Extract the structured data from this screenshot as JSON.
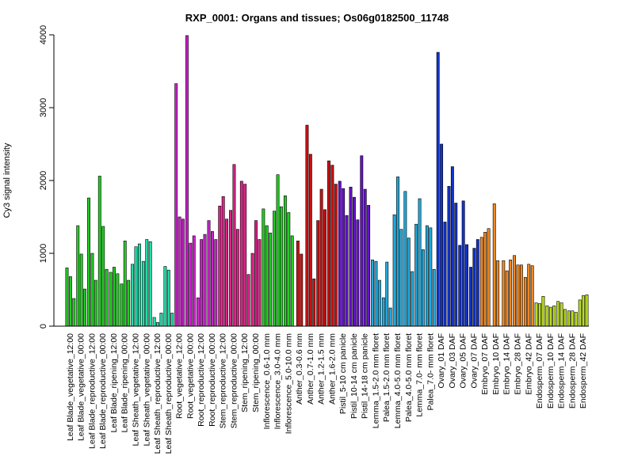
{
  "chart_data": {
    "type": "bar",
    "title": "RXP_0001: Organs and tissues; Os06g0182500_11748",
    "xlabel": "",
    "ylabel": "Cy3 signal intensity",
    "ylim": [
      0,
      4000
    ],
    "yticks": [
      0,
      1000,
      2000,
      3000,
      4000
    ],
    "x_tick_labels": [
      "Leaf Blade_vegetative_12:00",
      "Leaf Blade_vegetative_00:00",
      "Leaf Blade_reproductive_12:00",
      "Leaf Blade_reproductive_00:00",
      "Leaf Blade_ripening_12:00",
      "Leaf Blade_ripening_00:00",
      "Leaf Sheath_vegetative_12:00",
      "Leaf Sheath_vegetative_00:00",
      "Leaf Sheath_reproductive_12:00",
      "Leaf Sheath_reproductive_00:00",
      "Root_vegetative_12:00",
      "Root_vegetative_00:00",
      "Root_reproductive_12:00",
      "Root_reproductive_00:00",
      "Stem_reproductive_12:00",
      "Stem_reproductive_00:00",
      "Stem_ripening_12:00",
      "Stem_ripening_00:00",
      "Inflorescence_0.6-1.0 mm",
      "Inflorescence_3.0-4.0 mm",
      "Inflorescence_5.0-10.0 mm",
      "Anther_0.3-0.6 mm",
      "Anther_0.7-1.0 mm",
      "Anther_1.2-1.5 mm",
      "Anther_1.6-2.0 mm",
      "Pistil_5-10 cm panicle",
      "Pistil_10-14 cm panicle",
      "Pistil_14-18 cm panicle",
      "Lemma_1.5-2.0 mm floret",
      "Palea_1.5-2.0 mm floret",
      "Lemma_4.0-5.0 mm floret",
      "Palea_4.0-5.0 mm floret",
      "Lemma_7.0- mm floret",
      "Palea_7.0- mm floret",
      "Ovary_01 DAF",
      "Ovary_03 DAF",
      "Ovary_05 DAF",
      "Ovary_07 DAF",
      "Embryo_07 DAF",
      "Embryo_10 DAF",
      "Embryo_14 DAF",
      "Embryo_28 DAF",
      "Embryo_42 DAF",
      "Endosperm_07 DAF",
      "Endosperm_10 DAF",
      "Endosperm_14 DAF",
      "Endosperm_28 DAF",
      "Endosperm_42 DAF"
    ],
    "categories": [
      "Leaf Blade_vegetative_12:00",
      "Leaf Blade_vegetative_00:00",
      "Leaf Blade_reproductive_12:00",
      "Leaf Blade_reproductive_00:00",
      "Leaf Blade_ripening_12:00",
      "Leaf Blade_ripening_00:00",
      "Leaf Sheath_vegetative_12:00",
      "Leaf Sheath_vegetative_00:00",
      "Leaf Sheath_reproductive_12:00",
      "Leaf Sheath_reproductive_00:00",
      "Root_vegetative_12:00",
      "Root_vegetative_00:00",
      "Root_reproductive_12:00",
      "Root_reproductive_00:00",
      "Stem_reproductive_12:00",
      "Stem_reproductive_00:00",
      "Stem_ripening_12:00",
      "Stem_ripening_00:00",
      "Inflorescence_0.6-1.0 mm",
      "Inflorescence_3.0-4.0 mm",
      "Inflorescence_5.0-10.0 mm",
      "Anther_0.3-0.6 mm",
      "Anther_0.7-1.0 mm",
      "Anther_1.2-1.5 mm",
      "Anther_1.6-2.0 mm",
      "Pistil_5-10 cm panicle",
      "Pistil_10-14 cm panicle",
      "Pistil_14-18 cm panicle",
      "Lemma_1.5-2.0 mm floret",
      "Palea_1.5-2.0 mm floret",
      "Lemma_4.0-5.0 mm floret",
      "Palea_4.0-5.0 mm floret",
      "Lemma_7.0- mm floret",
      "Palea_7.0- mm floret",
      "Ovary_01 DAF",
      "Ovary_03 DAF",
      "Ovary_05 DAF",
      "Ovary_07 DAF",
      "Embryo_07 DAF",
      "Embryo_10 DAF",
      "Embryo_14 DAF",
      "Embryo_28 DAF",
      "Embryo_42 DAF",
      "Endosperm_07 DAF",
      "Endosperm_10 DAF",
      "Endosperm_14 DAF",
      "Endosperm_28 DAF",
      "Endosperm_42 DAF"
    ],
    "bars": [
      [
        800,
        680,
        380
      ],
      [
        1380,
        990,
        510
      ],
      [
        1760,
        1000,
        630
      ],
      [
        2060,
        1370,
        780
      ],
      [
        740,
        810,
        720
      ],
      [
        580,
        1170,
        630
      ],
      [
        850,
        1090,
        1130
      ],
      [
        890,
        1190,
        1160
      ],
      [
        120,
        50,
        180
      ],
      [
        820,
        770,
        180
      ],
      [
        3330,
        1500,
        1470
      ],
      [
        3990,
        1140,
        1240
      ],
      [
        390,
        1190,
        1260
      ],
      [
        1450,
        1300,
        1190
      ],
      [
        1650,
        1780,
        1470
      ],
      [
        1590,
        2220,
        1330
      ],
      [
        1990,
        1950,
        710
      ],
      [
        1000,
        1450,
        1190
      ],
      [
        1610,
        1380,
        1280
      ],
      [
        1580,
        2080,
        1640
      ],
      [
        1790,
        1560,
        1240
      ],
      [
        1170,
        990
      ],
      [
        2760,
        2360,
        650
      ],
      [
        1450,
        1880,
        1600
      ],
      [
        2270,
        2210,
        1950
      ],
      [
        1990,
        1890,
        1520
      ],
      [
        1910,
        1770,
        1460
      ],
      [
        2340,
        1880,
        1660
      ],
      [
        910,
        890,
        630
      ],
      [
        390,
        880,
        250
      ],
      [
        1530,
        2050,
        1330
      ],
      [
        1850,
        1210,
        750
      ],
      [
        1400,
        1750,
        1050
      ],
      [
        1380,
        1350,
        780
      ],
      [
        3760,
        2500,
        1430
      ],
      [
        1920,
        2190,
        1690
      ],
      [
        1110,
        1720,
        1120
      ],
      [
        810,
        1070,
        1190
      ],
      [
        1220,
        1290,
        1340
      ],
      [
        1680,
        900
      ],
      [
        900,
        760,
        910
      ],
      [
        970,
        840,
        840
      ],
      [
        670,
        850,
        830
      ],
      [
        320,
        310,
        410
      ],
      [
        280,
        260,
        280
      ],
      [
        340,
        320,
        230
      ],
      [
        210,
        210,
        190
      ],
      [
        360,
        420,
        430
      ]
    ],
    "group_colors": [
      "#22cc22",
      "#22cc22",
      "#22cc22",
      "#22cc22",
      "#22cc22",
      "#22cc22",
      "#22ddaa",
      "#22ddaa",
      "#22ddaa",
      "#22ddaa",
      "#cc22cc",
      "#cc22cc",
      "#cc22cc",
      "#cc22cc",
      "#dd2288",
      "#dd2288",
      "#dd2288",
      "#dd2288",
      "#22cc22",
      "#22cc22",
      "#22cc22",
      "#cc1111",
      "#cc1111",
      "#cc1111",
      "#cc1111",
      "#6611cc",
      "#6611cc",
      "#6611cc",
      "#22aadd",
      "#22aadd",
      "#22aadd",
      "#22aadd",
      "#22aadd",
      "#22aadd",
      "#1133cc",
      "#1133cc",
      "#1133cc",
      "#1133cc",
      "#ee8822",
      "#ee8822",
      "#ee8822",
      "#ee8822",
      "#ee8822",
      "#bbdd22",
      "#bbdd22",
      "#bbdd22",
      "#bbdd22",
      "#bbdd22"
    ],
    "grid": false,
    "legend": "none"
  }
}
